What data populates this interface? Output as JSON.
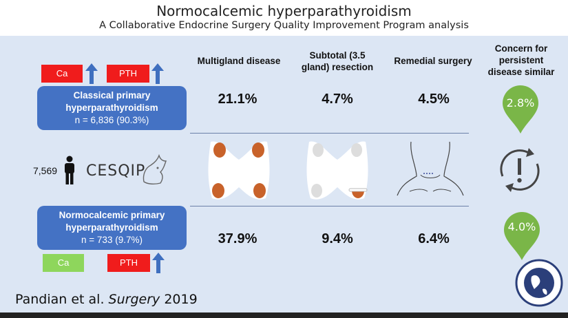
{
  "header": {
    "title": "Normocalcemic hyperparathyroidism",
    "subtitle": "A Collaborative Endocrine Surgery Quality Improvement Program analysis"
  },
  "labs": {
    "ca": "Ca",
    "pth": "PTH"
  },
  "groups": {
    "classical": {
      "line1": "Classical primary",
      "line2": "hyperparathyroidism",
      "n": "n = 6,836 (90.3%)"
    },
    "normocalcemic": {
      "line1": "Normocalcemic primary",
      "line2": "hyperparathyroidism",
      "n": "n = 733 (9.7%)"
    }
  },
  "columns": {
    "multigland": "Multigland disease",
    "subtotal_line1": "Subtotal (3.5",
    "subtotal_line2": "gland) resection",
    "remedial": "Remedial surgery",
    "concern_line1": "Concern for",
    "concern_line2": "persistent",
    "concern_line3": "disease similar"
  },
  "stats": {
    "classical": {
      "multigland": "21.1%",
      "subtotal": "4.7%",
      "remedial": "4.5%",
      "persistent": "2.8%"
    },
    "normocalcemic": {
      "multigland": "37.9%",
      "subtotal": "9.4%",
      "remedial": "6.4%",
      "persistent": "4.0%"
    }
  },
  "cohort": {
    "count": "7,569",
    "logo": "CESQIP"
  },
  "citation": {
    "authors": "Pandian et al. ",
    "journal": "Surgery",
    "year": " 2019"
  },
  "colors": {
    "panel": "#dce6f4",
    "blue_box": "#4472c4",
    "red_box": "#f01c1c",
    "green_box": "#8ed65c",
    "drop_green": "#7ab648",
    "gland_orange": "#c8622a"
  },
  "icons": {
    "arrow": "up-arrow-icon",
    "person": "person-icon",
    "cycle": "cycle-exclamation-icon",
    "drop": "location-drop-icon",
    "thyroid": "thyroid-gland-icon",
    "neck": "neck-scar-icon",
    "seal": "aaes-seal-icon"
  }
}
